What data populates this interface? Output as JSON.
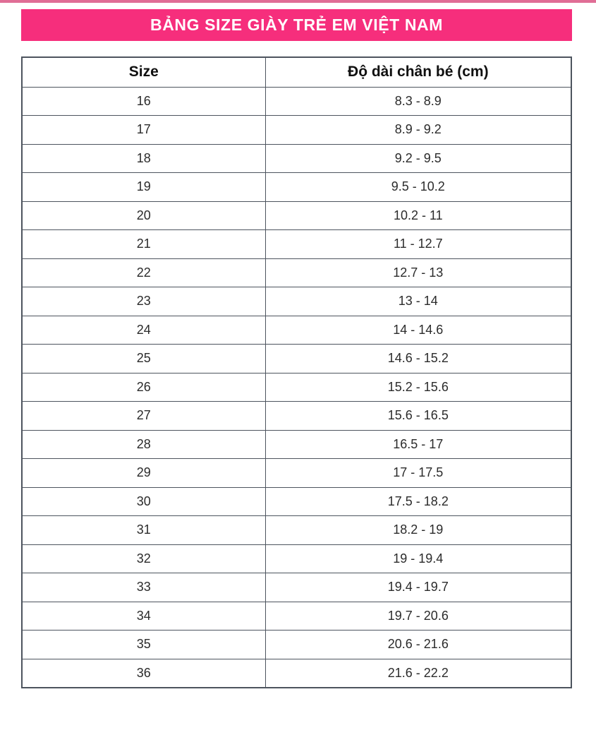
{
  "colors": {
    "banner_pink": "#F62E7C",
    "top_line_pink": "#E06E96",
    "table_border": "#4d545e",
    "header_text": "#101010",
    "cell_text": "#2b2b2b",
    "page_background": "#ffffff",
    "banner_text": "#ffffff"
  },
  "banner": {
    "text": "BẢNG SIZE GIÀY TRẺ EM VIỆT NAM"
  },
  "table": {
    "header": {
      "size": "Size",
      "foot_length": "Độ dài chân bé (cm)"
    },
    "rows": [
      {
        "size": "16",
        "length": "8.3 - 8.9"
      },
      {
        "size": "17",
        "length": "8.9 - 9.2"
      },
      {
        "size": "18",
        "length": "9.2 - 9.5"
      },
      {
        "size": "19",
        "length": "9.5 - 10.2"
      },
      {
        "size": "20",
        "length": "10.2 - 11"
      },
      {
        "size": "21",
        "length": "11 - 12.7"
      },
      {
        "size": "22",
        "length": "12.7 - 13"
      },
      {
        "size": "23",
        "length": "13 - 14"
      },
      {
        "size": "24",
        "length": "14 - 14.6"
      },
      {
        "size": "25",
        "length": "14.6 - 15.2"
      },
      {
        "size": "26",
        "length": "15.2 - 15.6"
      },
      {
        "size": "27",
        "length": "15.6 - 16.5"
      },
      {
        "size": "28",
        "length": "16.5 - 17"
      },
      {
        "size": "29",
        "length": "17 - 17.5"
      },
      {
        "size": "30",
        "length": "17.5 - 18.2"
      },
      {
        "size": "31",
        "length": "18.2 - 19"
      },
      {
        "size": "32",
        "length": "19 - 19.4"
      },
      {
        "size": "33",
        "length": "19.4 - 19.7"
      },
      {
        "size": "34",
        "length": "19.7 - 20.6"
      },
      {
        "size": "35",
        "length": "20.6 - 21.6"
      },
      {
        "size": "36",
        "length": "21.6 - 22.2"
      }
    ]
  }
}
